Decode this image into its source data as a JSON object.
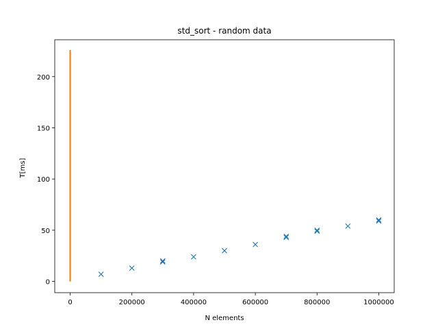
{
  "chart_data": {
    "type": "scatter",
    "title": "std_sort - random data",
    "xlabel": "N elements",
    "ylabel": "T[ms]",
    "xlim": [
      -50000,
      1050000
    ],
    "ylim": [
      -11,
      236
    ],
    "xticks": [
      0,
      200000,
      400000,
      600000,
      800000,
      1000000
    ],
    "yticks": [
      0,
      50,
      100,
      150,
      200
    ],
    "series": [
      {
        "marker": "x",
        "color": "#1f77b4",
        "points": [
          [
            100000,
            7
          ],
          [
            200000,
            13
          ],
          [
            300000,
            19
          ],
          [
            300000,
            20
          ],
          [
            400000,
            24
          ],
          [
            500000,
            30
          ],
          [
            600000,
            36
          ],
          [
            700000,
            43
          ],
          [
            700000,
            44
          ],
          [
            800000,
            49
          ],
          [
            800000,
            50
          ],
          [
            900000,
            54
          ],
          [
            1000000,
            59
          ],
          [
            1000000,
            60
          ]
        ]
      },
      {
        "marker": "line",
        "color": "#ff7f0e",
        "points": [
          [
            0,
            0
          ],
          [
            0,
            226
          ]
        ]
      }
    ],
    "grid": false,
    "legend": "none"
  }
}
